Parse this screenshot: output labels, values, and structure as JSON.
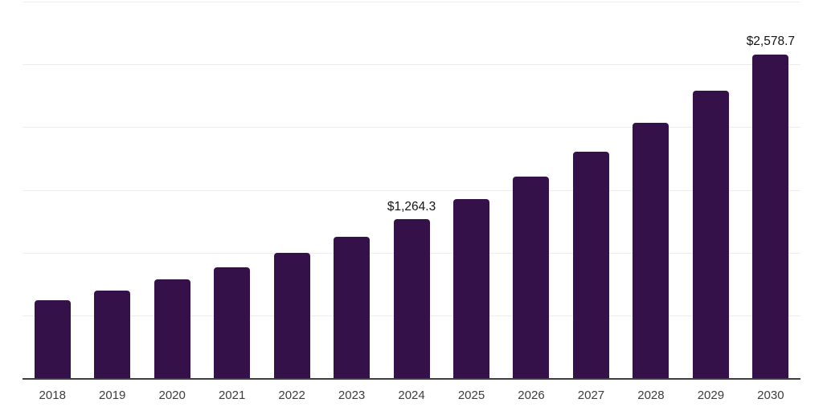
{
  "chart": {
    "background_color": "#ffffff",
    "bar_color": "#341249",
    "grid_color": "#ededed",
    "axis_line_color": "#3e3e3e",
    "tick_label_color": "#3d3d3d",
    "data_label_color": "#141414"
  },
  "chart_data": {
    "type": "bar",
    "title": "",
    "xlabel": "",
    "ylabel": "",
    "categories": [
      "2018",
      "2019",
      "2020",
      "2021",
      "2022",
      "2023",
      "2024",
      "2025",
      "2026",
      "2027",
      "2028",
      "2029",
      "2030"
    ],
    "values": [
      620,
      698,
      786,
      885,
      997,
      1123,
      1264.3,
      1424,
      1603,
      1805,
      2033,
      2289,
      2578.7
    ],
    "data_labels": {
      "2024": "$1,264.3",
      "2030": "$2,578.7"
    },
    "ylim": [
      0,
      3000
    ],
    "grid_interval": 500,
    "grid": "horizontal",
    "y_tick_labels_visible": false,
    "legend": "none"
  }
}
